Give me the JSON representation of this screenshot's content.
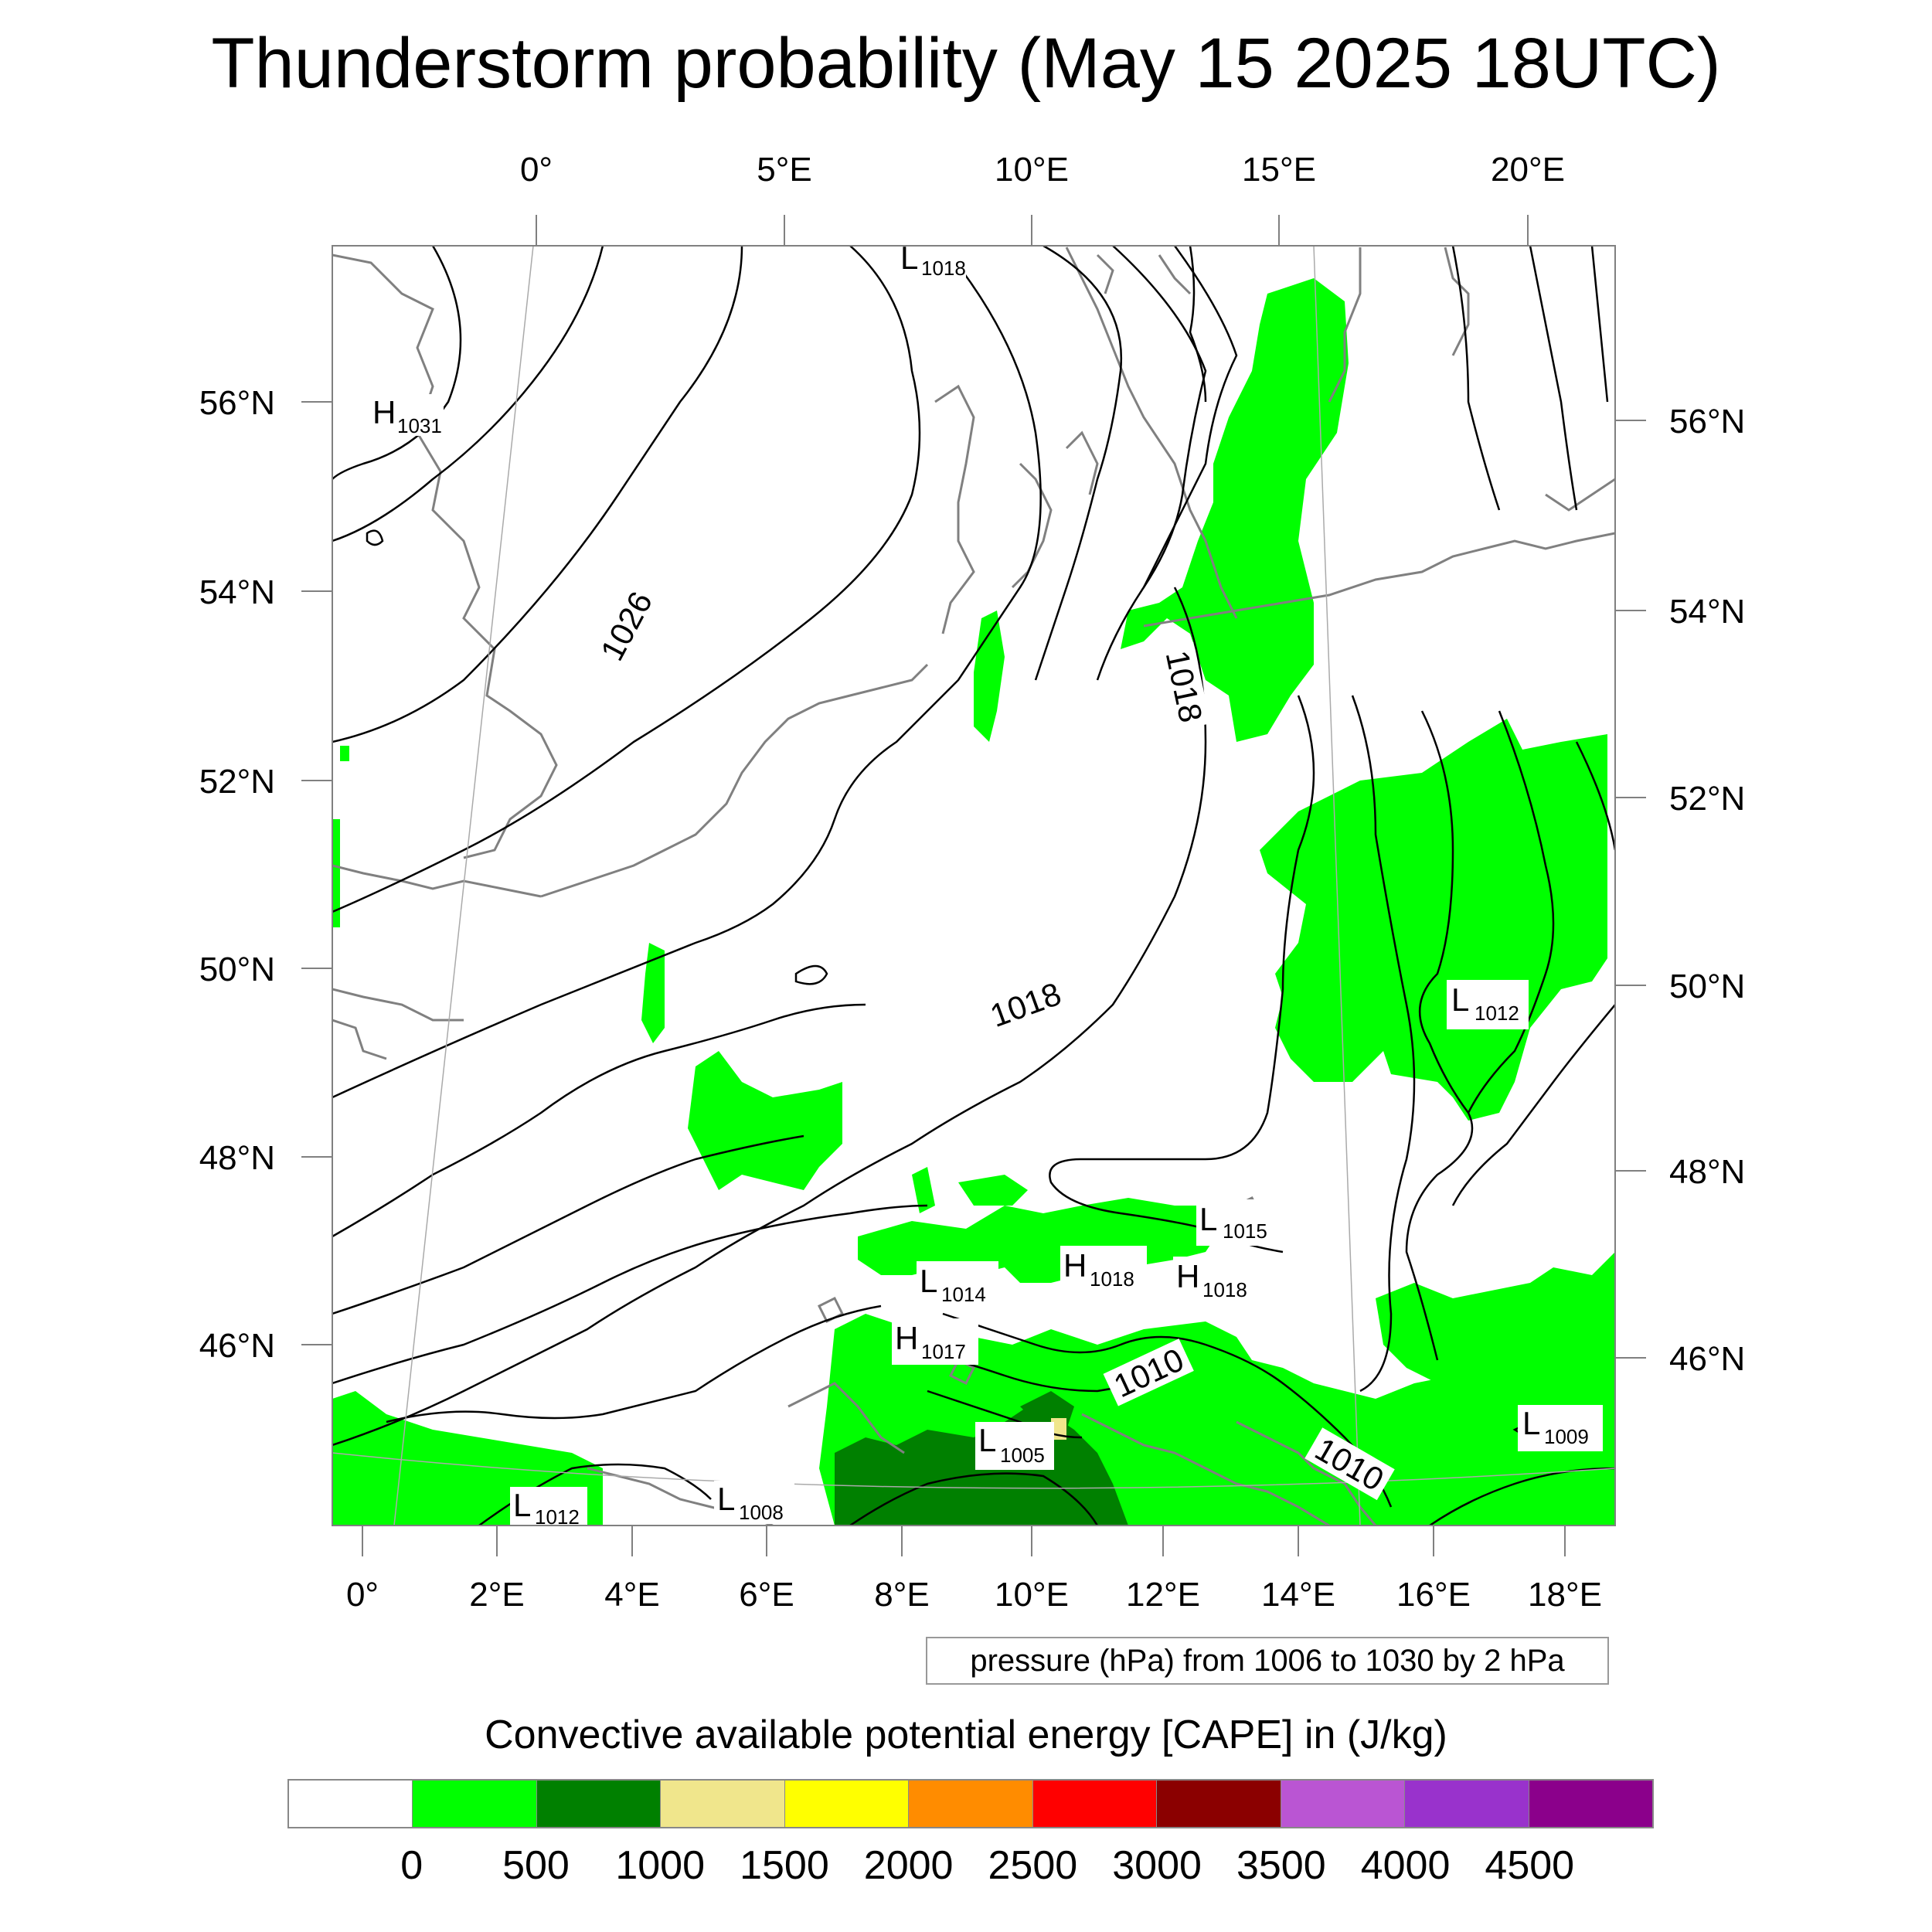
{
  "title": "Thunderstorm probability (May 15 2025 18UTC)",
  "top_axis_labels": [
    "0°",
    "5°E",
    "10°E",
    "15°E",
    "20°E"
  ],
  "bottom_axis_labels": [
    "0°",
    "2°E",
    "4°E",
    "6°E",
    "8°E",
    "10°E",
    "12°E",
    "14°E",
    "16°E",
    "18°E"
  ],
  "left_axis_labels": [
    "56°N",
    "54°N",
    "52°N",
    "50°N",
    "48°N",
    "46°N"
  ],
  "right_axis_labels": [
    "56°N",
    "54°N",
    "52°N",
    "50°N",
    "48°N",
    "46°N"
  ],
  "pressure_centers": [
    {
      "type": "L",
      "value": "1018"
    },
    {
      "type": "H",
      "value": "1031"
    },
    {
      "type": "L",
      "value": "1012"
    },
    {
      "type": "L",
      "value": "1015"
    },
    {
      "type": "L",
      "value": "1014"
    },
    {
      "type": "H",
      "value": "1018"
    },
    {
      "type": "H",
      "value": "1018"
    },
    {
      "type": "H",
      "value": "1017"
    },
    {
      "type": "L",
      "value": "1005"
    },
    {
      "type": "L",
      "value": "1009"
    },
    {
      "type": "L",
      "value": "1012"
    },
    {
      "type": "L",
      "value": "1008"
    }
  ],
  "isobar_labels": [
    "1026",
    "1018",
    "1018",
    "1010",
    "1010"
  ],
  "pressure_note": "pressure (hPa) from 1006 to 1030 by 2 hPa",
  "legend": {
    "title": "Convective available potential energy [CAPE] in (J/kg)",
    "colors": [
      "#ffffff",
      "#00ff00",
      "#008000",
      "#f0e68c",
      "#ffff00",
      "#ff8c00",
      "#ff0000",
      "#8b0000",
      "#ba55d3",
      "#9932cc",
      "#8b008b"
    ],
    "labels": [
      "0",
      "500",
      "1000",
      "1500",
      "2000",
      "2500",
      "3000",
      "3500",
      "4000",
      "4500"
    ]
  },
  "colors": {
    "cape_low": "#00ff00",
    "cape_mid": "#008000",
    "cape_high": "#f0e68c",
    "isobar": "#000000",
    "coastline": "#808080",
    "frame": "#808080"
  }
}
